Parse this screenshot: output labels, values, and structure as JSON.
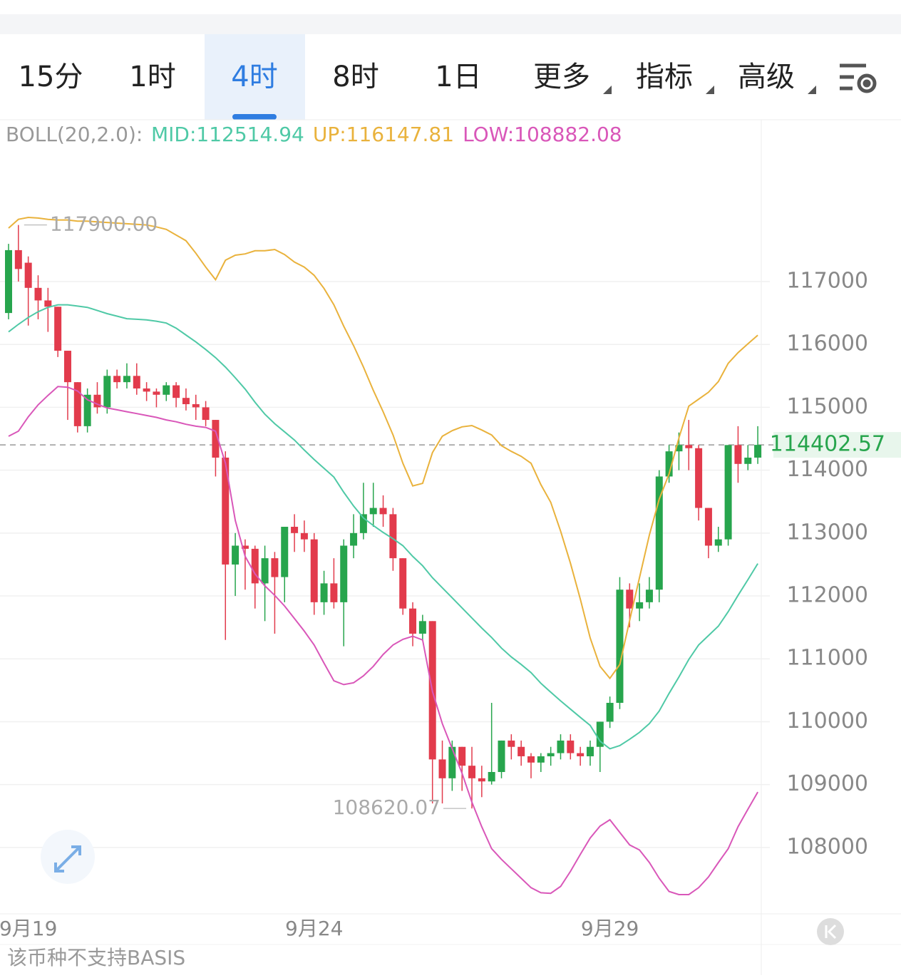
{
  "tabs": {
    "items": [
      "15分",
      "1时",
      "4时",
      "8时",
      "1日",
      "更多",
      "指标",
      "高级"
    ],
    "active": 2,
    "dropdown": [
      false,
      false,
      false,
      false,
      false,
      true,
      true,
      true
    ]
  },
  "chart_data": {
    "type": "candlestick",
    "indicator": "BOLL(20,2.0):",
    "categories": [
      null,
      null,
      "9月19",
      null,
      null,
      null,
      null,
      null,
      null,
      null,
      null,
      null,
      null,
      null,
      null,
      null,
      null,
      null,
      null,
      null,
      null,
      null,
      null,
      null,
      null,
      null,
      null,
      null,
      null,
      null,
      null,
      "9月24",
      null,
      null,
      null,
      null,
      null,
      null,
      null,
      null,
      null,
      null,
      null,
      null,
      null,
      null,
      null,
      null,
      null,
      null,
      null,
      null,
      null,
      null,
      null,
      null,
      null,
      null,
      null,
      null,
      null,
      "9月29",
      null,
      null,
      null,
      null,
      null,
      null,
      null,
      null,
      null,
      null,
      null,
      null,
      null,
      null,
      null
    ],
    "open": [
      116500,
      117500,
      117300,
      116900,
      116700,
      116600,
      115900,
      115400,
      114700,
      115200,
      115000,
      115500,
      115400,
      115500,
      115300,
      115250,
      115200,
      115350,
      115150,
      115050,
      115000,
      114800,
      114200,
      112500,
      112800,
      112750,
      112200,
      112600,
      112300,
      113100,
      113000,
      112900,
      111900,
      112200,
      111900,
      112800,
      113000,
      113300,
      113400,
      113300,
      112600,
      111800,
      111400,
      111600,
      109400,
      109100,
      109600,
      109300,
      109100,
      109050,
      109200,
      109700,
      109600,
      109450,
      109350,
      109450,
      109500,
      109700,
      109500,
      109450,
      109600,
      110000,
      110300,
      112100,
      111800,
      111900,
      112100,
      113900,
      114300,
      114400,
      114350,
      113400,
      112800,
      112900,
      114400,
      114100,
      114200
    ],
    "high": [
      117600,
      117900,
      117400,
      117100,
      116900,
      116600,
      115900,
      115400,
      115300,
      115400,
      115600,
      115600,
      115700,
      115700,
      115400,
      115300,
      115400,
      115400,
      115300,
      115200,
      115100,
      114800,
      114300,
      113000,
      112900,
      112800,
      112800,
      112700,
      113100,
      113300,
      113200,
      113000,
      112400,
      112600,
      112900,
      113300,
      113800,
      113800,
      113600,
      113400,
      112600,
      111900,
      111700,
      111600,
      109700,
      109700,
      109600,
      109600,
      109300,
      110300,
      109700,
      109800,
      109700,
      109500,
      109500,
      109600,
      109800,
      109800,
      109600,
      109700,
      110000,
      110400,
      112300,
      112200,
      112200,
      112300,
      114000,
      114400,
      114600,
      114800,
      114400,
      113400,
      113100,
      114400,
      114700,
      114400,
      114700
    ],
    "low": [
      116400,
      117000,
      116300,
      116400,
      116200,
      115800,
      114800,
      114600,
      114600,
      114900,
      114900,
      115300,
      115300,
      115200,
      115100,
      115000,
      115100,
      115000,
      114950,
      114800,
      114700,
      113900,
      111300,
      112000,
      112100,
      111800,
      111600,
      111400,
      111900,
      112700,
      112700,
      111700,
      111700,
      111800,
      111200,
      112600,
      112900,
      113100,
      113100,
      112400,
      111700,
      111200,
      111300,
      108700,
      108700,
      108900,
      108900,
      108620.07,
      108800,
      109000,
      109100,
      109400,
      109300,
      109100,
      109200,
      109300,
      109400,
      109400,
      109300,
      109300,
      109200,
      109900,
      110200,
      111500,
      111600,
      111800,
      111900,
      113800,
      114000,
      114000,
      113200,
      112600,
      112700,
      112800,
      113800,
      114000,
      114100
    ],
    "close": [
      117500,
      117200,
      116900,
      116700,
      116600,
      115900,
      115400,
      114700,
      115200,
      115000,
      115500,
      115400,
      115500,
      115300,
      115250,
      115200,
      115350,
      115150,
      115050,
      115000,
      114800,
      114200,
      112500,
      112800,
      112750,
      112200,
      112600,
      112300,
      113100,
      113000,
      112900,
      111900,
      112200,
      111900,
      112800,
      113000,
      113300,
      113400,
      113300,
      112600,
      111800,
      111400,
      111600,
      109400,
      109100,
      109600,
      109300,
      109100,
      109050,
      109200,
      109700,
      109600,
      109450,
      109350,
      109450,
      109500,
      109700,
      109500,
      109450,
      109600,
      110000,
      110300,
      112100,
      111800,
      111900,
      112100,
      113900,
      114300,
      114400,
      114350,
      113400,
      112800,
      112900,
      114400,
      114100,
      114200,
      114402.57
    ],
    "up_color": "#27a54d",
    "down_color": "#e23b4c",
    "series": [
      {
        "label": "MID:112514.94",
        "color": "#4fc9a6",
        "values": [
          116200,
          116320,
          116430,
          116520,
          116590,
          116630,
          116630,
          116610,
          116590,
          116540,
          116490,
          116450,
          116410,
          116400,
          116390,
          116370,
          116340,
          116260,
          116150,
          116040,
          115920,
          115790,
          115640,
          115470,
          115290,
          115080,
          114890,
          114740,
          114610,
          114480,
          114320,
          114170,
          114030,
          113890,
          113650,
          113430,
          113240,
          113120,
          113010,
          112910,
          112800,
          112630,
          112480,
          112290,
          112130,
          111970,
          111810,
          111650,
          111490,
          111340,
          111170,
          111030,
          110910,
          110780,
          110610,
          110470,
          110330,
          110200,
          110070,
          109940,
          109690,
          109570,
          109620,
          109720,
          109830,
          109970,
          110170,
          110450,
          110710,
          110990,
          111220,
          111370,
          111520,
          111750,
          112010,
          112260,
          112514.94
        ]
      },
      {
        "label": "UP:116147.81",
        "color": "#e9b23c",
        "values": [
          117850,
          117990,
          118020,
          118010,
          117990,
          117980,
          117980,
          117960,
          117960,
          117950,
          117940,
          117930,
          117920,
          117910,
          117900,
          117870,
          117830,
          117740,
          117650,
          117450,
          117230,
          117030,
          117340,
          117420,
          117440,
          117490,
          117490,
          117510,
          117430,
          117310,
          117230,
          117100,
          116890,
          116630,
          116290,
          115980,
          115640,
          115270,
          114930,
          114560,
          114110,
          113750,
          113790,
          114280,
          114540,
          114630,
          114690,
          114710,
          114640,
          114560,
          114390,
          114300,
          114220,
          114110,
          113770,
          113490,
          113030,
          112520,
          111950,
          111330,
          110880,
          110690,
          110910,
          111610,
          112290,
          112970,
          113540,
          113940,
          114510,
          115020,
          115130,
          115240,
          115410,
          115700,
          115870,
          116010,
          116147.81
        ]
      },
      {
        "label": "LOW:108882.08",
        "color": "#d957b9",
        "values": [
          114540,
          114620,
          114850,
          115040,
          115190,
          115330,
          115320,
          115260,
          115120,
          115050,
          114990,
          114960,
          114930,
          114900,
          114870,
          114840,
          114800,
          114770,
          114730,
          114700,
          114680,
          114620,
          114110,
          113200,
          112630,
          112350,
          112160,
          112010,
          111840,
          111640,
          111440,
          111220,
          110930,
          110650,
          110590,
          110620,
          110730,
          110880,
          111070,
          111220,
          111310,
          111360,
          111300,
          110480,
          109970,
          109570,
          109180,
          108720,
          108330,
          107980,
          107810,
          107660,
          107510,
          107360,
          107280,
          107270,
          107380,
          107620,
          107890,
          108150,
          108340,
          108440,
          108240,
          108040,
          107960,
          107760,
          107510,
          107300,
          107250,
          107250,
          107360,
          107530,
          107760,
          107980,
          108330,
          108610,
          108882.08
        ]
      }
    ],
    "ylim": [
      106944,
      119551
    ],
    "yticks": [
      108000,
      109000,
      110000,
      111000,
      112000,
      113000,
      114000,
      115000,
      116000,
      117000
    ],
    "grid": true,
    "annotations": [
      {
        "value": 117900,
        "label": "117900.00"
      },
      {
        "value": 108620.07,
        "label": "108620.07"
      }
    ],
    "last_price": 114402.57
  },
  "footer": "该币种不支持BASIS"
}
